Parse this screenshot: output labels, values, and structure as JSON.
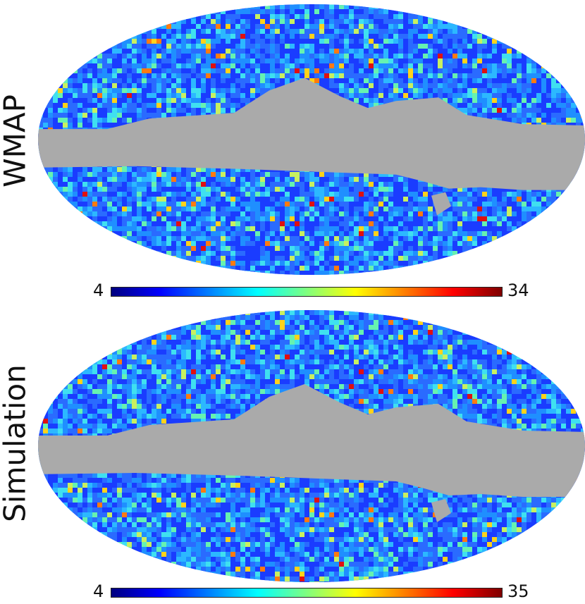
{
  "maps": [
    {
      "id": "top",
      "title": "WMAP",
      "colorbar": {
        "min": "4",
        "max": "34"
      }
    },
    {
      "id": "bottom",
      "title": "Simulation",
      "colorbar": {
        "min": "4",
        "max": "35"
      }
    }
  ],
  "colors": {
    "mask": "#aaaaaa",
    "colormap": [
      "#00007f",
      "#0000ff",
      "#007fff",
      "#00ffff",
      "#7fff7f",
      "#ffff00",
      "#ff7f00",
      "#ff0000",
      "#7f0000"
    ]
  }
}
